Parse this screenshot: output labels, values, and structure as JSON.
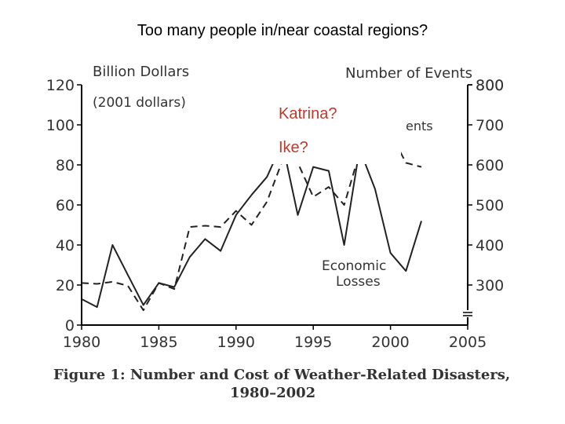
{
  "page": {
    "title": "Too many people in/near coastal regions?"
  },
  "annotations": [
    "Katrina?",
    "Ike?"
  ],
  "colors": {
    "annotation": "#c0392b",
    "line": "#222222",
    "box": "#000000"
  },
  "chart_data": {
    "type": "line",
    "title": "Figure 1: Number and Cost of Weather-Related Disasters,",
    "subtitle": "1980–2002",
    "ylabel": "Billion Dollars",
    "ylabel_note": "(2001 dollars)",
    "y2label": "Number of Events",
    "xlim": [
      1980,
      2005
    ],
    "ylim": [
      0,
      120
    ],
    "y2lim": [
      200,
      800
    ],
    "x_ticks": [
      "1980",
      "1985",
      "1990",
      "1995",
      "2000",
      "2005"
    ],
    "y_ticks": [
      "0",
      "20",
      "40",
      "60",
      "80",
      "100",
      "120"
    ],
    "y2_ticks": [
      "300",
      "400",
      "500",
      "600",
      "700",
      "800"
    ],
    "grid": false,
    "series": [
      {
        "name": "Economic Losses",
        "axis": "left",
        "style": "solid",
        "x": [
          1980,
          1981,
          1982,
          1983,
          1984,
          1985,
          1986,
          1987,
          1988,
          1989,
          1990,
          1991,
          1992,
          1993,
          1994,
          1995,
          1996,
          1997,
          1998,
          1999,
          2000,
          2001,
          2002
        ],
        "values": [
          13,
          9,
          40,
          25,
          10,
          21,
          19,
          34,
          43,
          37,
          55,
          65,
          74,
          91,
          55,
          79,
          77,
          40,
          88,
          68,
          36,
          27,
          52
        ]
      },
      {
        "name": "Events",
        "axis": "right",
        "style": "dashed",
        "x": [
          1980,
          1981,
          1982,
          1983,
          1984,
          1985,
          1986,
          1987,
          1988,
          1989,
          1990,
          1991,
          1992,
          1993,
          1994,
          1995,
          1996,
          1997,
          1998,
          1999,
          2000,
          2001,
          2002
        ],
        "values": [
          305,
          303,
          308,
          298,
          237,
          305,
          290,
          445,
          448,
          445,
          485,
          450,
          508,
          610,
          605,
          520,
          545,
          500,
          630,
          650,
          680,
          605,
          595
        ]
      }
    ],
    "legend_text": [
      "Economic",
      "Losses"
    ],
    "events_label": "ents"
  }
}
